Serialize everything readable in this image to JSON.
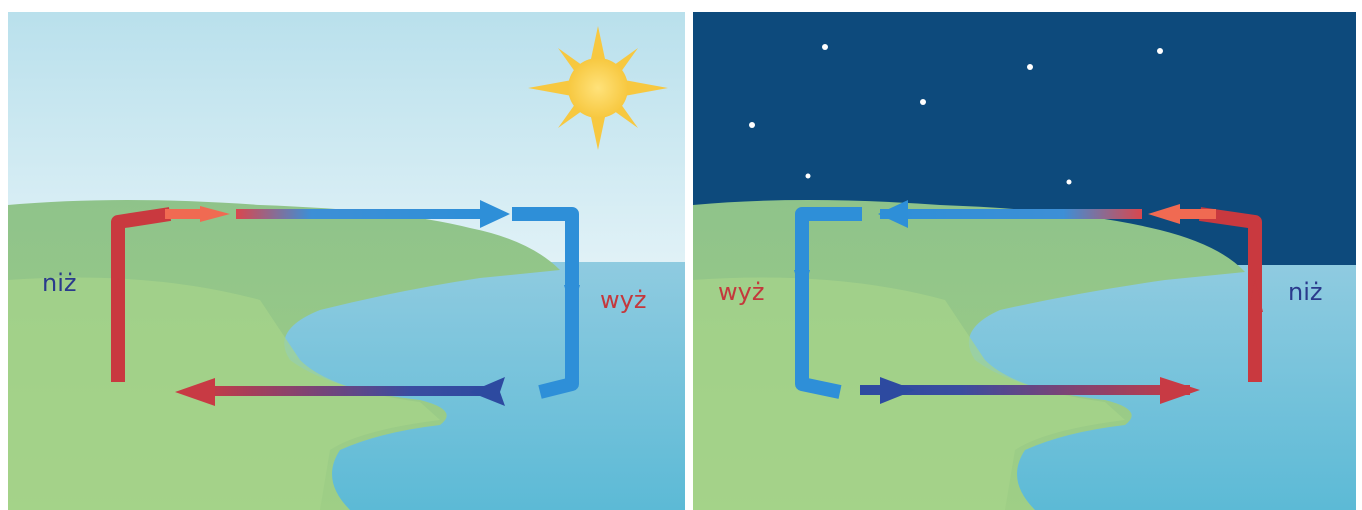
{
  "panels": [
    {
      "low_label": "niż",
      "high_label": "wyż"
    },
    {
      "low_label": "niż",
      "high_label": "wyż"
    }
  ]
}
